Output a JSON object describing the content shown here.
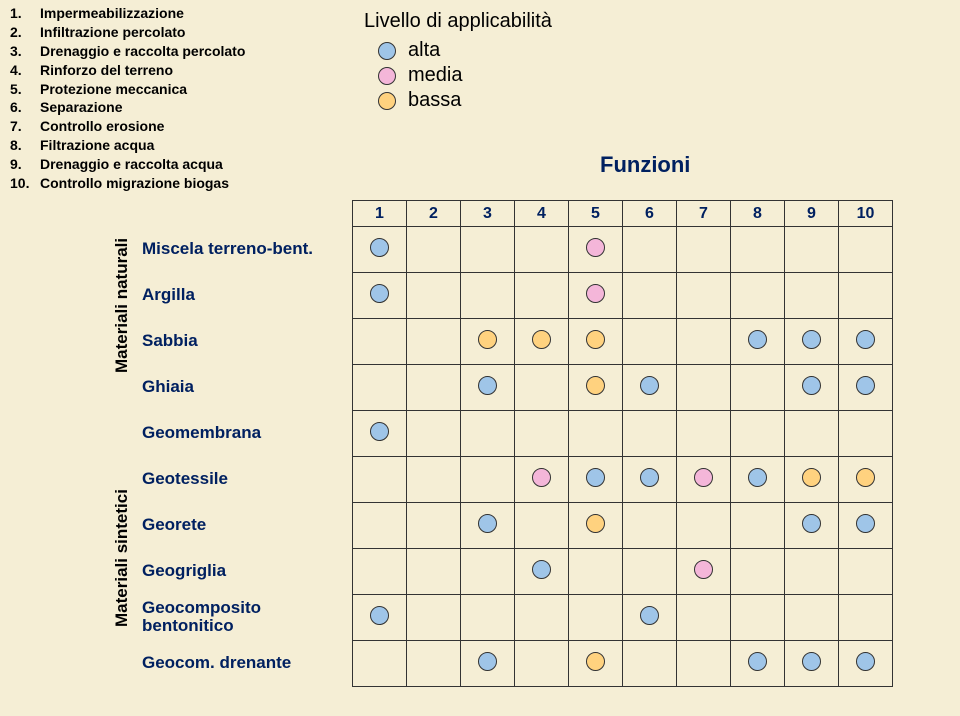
{
  "functions": [
    {
      "n": "1.",
      "label": "Impermeabilizzazione"
    },
    {
      "n": "2.",
      "label": "Infiltrazione percolato"
    },
    {
      "n": "3.",
      "label": "Drenaggio e raccolta percolato"
    },
    {
      "n": "4.",
      "label": "Rinforzo del terreno"
    },
    {
      "n": "5.",
      "label": "Protezione meccanica"
    },
    {
      "n": "6.",
      "label": "Separazione"
    },
    {
      "n": "7.",
      "label": "Controllo erosione"
    },
    {
      "n": "8.",
      "label": "Filtrazione acqua"
    },
    {
      "n": "9.",
      "label": "Drenaggio e raccolta acqua"
    },
    {
      "n": "10.",
      "label": "Controllo migrazione biogas"
    }
  ],
  "legend": {
    "title": "Livello di applicabilità",
    "alta": "alta",
    "media": "media",
    "bassa": "bassa"
  },
  "colors": {
    "alta": "#9fc5e8",
    "media": "#f4b6d9",
    "bassa": "#ffd27f",
    "background": "#f5eed5",
    "header_text": "#002060",
    "border": "#333333"
  },
  "funzioni_label": "Funzioni",
  "axis_labels": {
    "naturali": "Materiali naturali",
    "sintetici": "Materiali sintetici"
  },
  "columns": [
    "1",
    "2",
    "3",
    "4",
    "5",
    "6",
    "7",
    "8",
    "9",
    "10"
  ],
  "rows": [
    {
      "label": "Miscela terreno-bent.",
      "group": "nat",
      "cells": [
        "alta",
        "",
        "",
        "",
        "media",
        "",
        "",
        "",
        "",
        ""
      ]
    },
    {
      "label": "Argilla",
      "group": "nat",
      "cells": [
        "alta",
        "",
        "",
        "",
        "media",
        "",
        "",
        "",
        "",
        ""
      ]
    },
    {
      "label": "Sabbia",
      "group": "nat",
      "cells": [
        "",
        "",
        "bassa",
        "bassa",
        "bassa",
        "",
        "",
        "alta",
        "alta",
        "alta"
      ]
    },
    {
      "label": "Ghiaia",
      "group": "nat",
      "cells": [
        "",
        "",
        "alta",
        "",
        "bassa",
        "alta",
        "",
        "",
        "alta",
        "alta"
      ]
    },
    {
      "label": "Geomembrana",
      "group": "",
      "cells": [
        "alta",
        "",
        "",
        "",
        "",
        "",
        "",
        "",
        "",
        ""
      ]
    },
    {
      "label": "Geotessile",
      "group": "sint",
      "cells": [
        "",
        "",
        "",
        "media",
        "alta",
        "alta",
        "media",
        "alta",
        "bassa",
        "bassa"
      ]
    },
    {
      "label": "Georete",
      "group": "sint",
      "cells": [
        "",
        "",
        "alta",
        "",
        "bassa",
        "",
        "",
        "",
        "alta",
        "alta"
      ]
    },
    {
      "label": "Geogriglia",
      "group": "sint",
      "cells": [
        "",
        "",
        "",
        "alta",
        "",
        "",
        "media",
        "",
        "",
        ""
      ]
    },
    {
      "label": "Geocomposito bentonitico",
      "group": "sint",
      "cells": [
        "alta",
        "",
        "",
        "",
        "",
        "alta",
        "",
        "",
        "",
        ""
      ]
    },
    {
      "label": "Geocom. drenante",
      "group": "sint",
      "cells": [
        "",
        "",
        "alta",
        "",
        "bassa",
        "",
        "",
        "alta",
        "alta",
        "alta"
      ]
    }
  ]
}
